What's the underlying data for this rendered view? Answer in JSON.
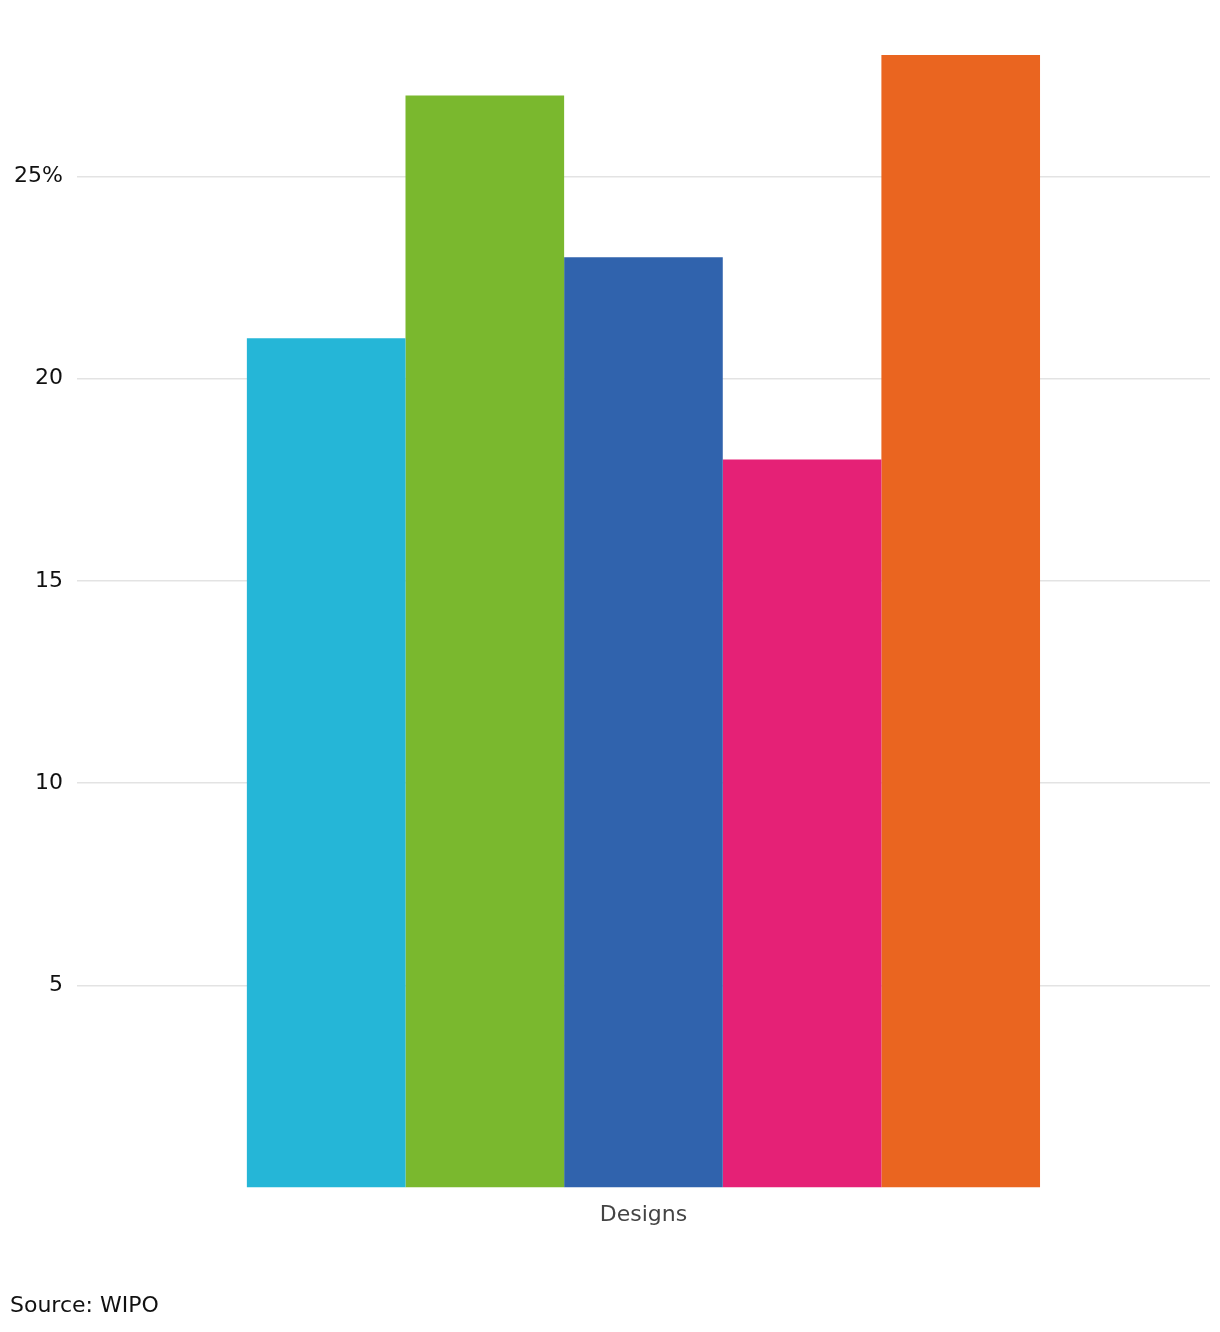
{
  "chart_data": {
    "type": "bar",
    "categories": [
      "Designs"
    ],
    "series": [
      {
        "color": "#25b6d7",
        "values": [
          21
        ]
      },
      {
        "color": "#7ab82e",
        "values": [
          27
        ]
      },
      {
        "color": "#3063ad",
        "values": [
          23
        ]
      },
      {
        "color": "#e52176",
        "values": [
          18
        ]
      },
      {
        "color": "#ea6520",
        "values": [
          28
        ]
      }
    ],
    "ylim": [
      0,
      28
    ],
    "yticks": [
      5,
      10,
      15,
      20,
      {
        "value": 25,
        "label": "25%"
      }
    ],
    "grid": "y",
    "annotations": [
      "Source: WIPO"
    ]
  }
}
